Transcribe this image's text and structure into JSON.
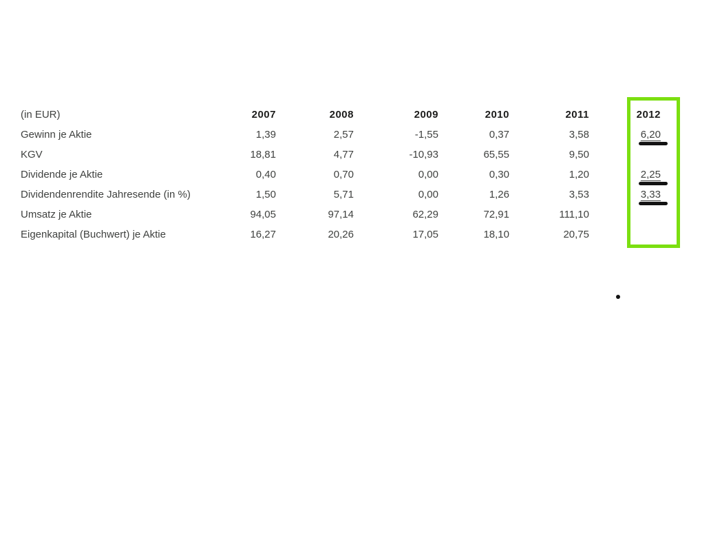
{
  "table": {
    "unit_label": "(in EUR)",
    "years": [
      "2007",
      "2008",
      "2009",
      "2010",
      "2011",
      "2012"
    ],
    "rows": [
      {
        "label": "Gewinn je Aktie",
        "values": [
          "1,39",
          "2,57",
          "-1,55",
          "0,37",
          "3,58"
        ],
        "value_2012": "6,20",
        "marked": true
      },
      {
        "label": "KGV",
        "values": [
          "18,81",
          "4,77",
          "-10,93",
          "65,55",
          "9,50"
        ],
        "value_2012": "",
        "marked": false
      },
      {
        "label": "Dividende je Aktie",
        "values": [
          "0,40",
          "0,70",
          "0,00",
          "0,30",
          "1,20"
        ],
        "value_2012": "2,25",
        "marked": true
      },
      {
        "label": "Dividendenrendite Jahresende (in %)",
        "values": [
          "1,50",
          "5,71",
          "0,00",
          "1,26",
          "3,53"
        ],
        "value_2012": "3,33",
        "marked": true
      },
      {
        "label": "Umsatz je Aktie",
        "values": [
          "94,05",
          "97,14",
          "62,29",
          "72,91",
          "111,10"
        ],
        "value_2012": "",
        "marked": false
      },
      {
        "label": "Eigenkapital (Buchwert) je Aktie",
        "values": [
          "16,27",
          "20,26",
          "17,05",
          "18,10",
          "20,75"
        ],
        "value_2012": "",
        "marked": false
      }
    ]
  },
  "annotations": {
    "highlight_color": "#7bdf10",
    "marker_color": "#121212"
  }
}
